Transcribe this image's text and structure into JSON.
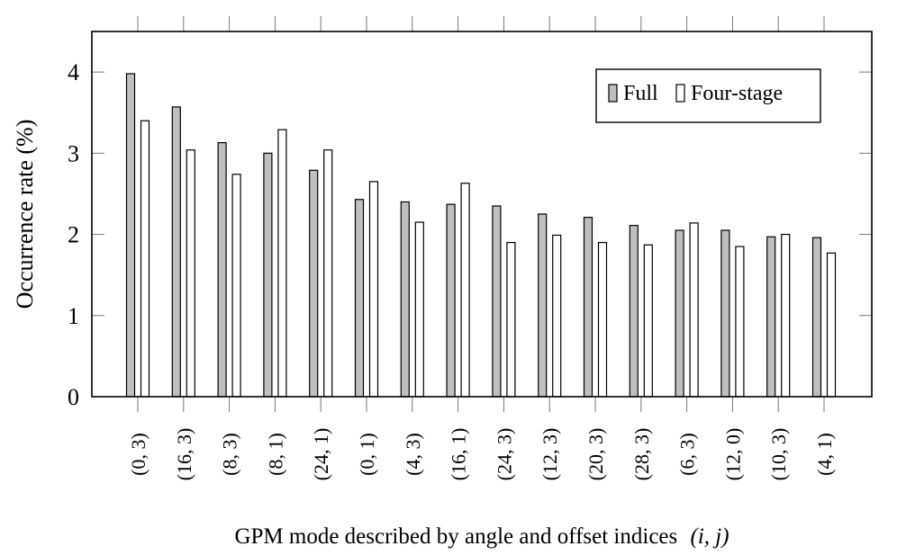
{
  "chart_data": {
    "type": "bar",
    "title": "",
    "xlabel": "GPM mode described by angle and offset indices",
    "xlabel_math": "(i, j)",
    "ylabel": "Occurrence rate (%)",
    "ylim": [
      0,
      4.5
    ],
    "yticks": [
      0,
      1,
      2,
      3,
      4
    ],
    "grid": false,
    "legend_position": "top-right",
    "categories": [
      "(0, 3)",
      "(16, 3)",
      "(8, 3)",
      "(8, 1)",
      "(24, 1)",
      "(0, 1)",
      "(4, 3)",
      "(16, 1)",
      "(24, 3)",
      "(12, 3)",
      "(20, 3)",
      "(28, 3)",
      "(6, 3)",
      "(12, 0)",
      "(10, 3)",
      "(4, 1)"
    ],
    "series": [
      {
        "name": "Full",
        "color": "#bfbfbf",
        "values": [
          3.98,
          3.57,
          3.13,
          3.0,
          2.79,
          2.43,
          2.4,
          2.37,
          2.35,
          2.25,
          2.21,
          2.11,
          2.05,
          2.05,
          1.97,
          1.96
        ]
      },
      {
        "name": "Four-stage",
        "color": "#ffffff",
        "values": [
          3.4,
          3.04,
          2.74,
          3.29,
          3.04,
          2.65,
          2.15,
          2.63,
          1.9,
          1.99,
          1.9,
          1.87,
          2.14,
          1.85,
          2.0,
          1.77
        ]
      }
    ]
  }
}
